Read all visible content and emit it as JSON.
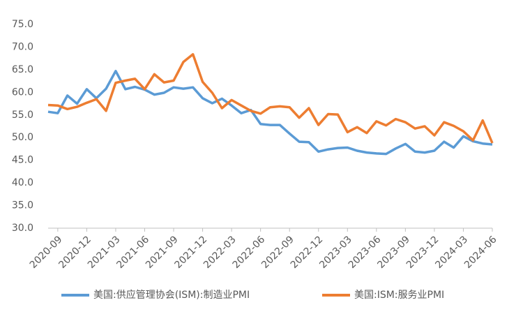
{
  "chart_data": {
    "type": "line",
    "categories": [
      null,
      "2020-09",
      null,
      null,
      "2020-12",
      null,
      null,
      "2021-03",
      null,
      null,
      "2021-06",
      null,
      null,
      "2021-09",
      null,
      null,
      "2021-12",
      null,
      null,
      "2022-03",
      null,
      null,
      "2022-06",
      null,
      null,
      "2022-09",
      null,
      null,
      "2022-12",
      null,
      null,
      "2023-03",
      null,
      null,
      "2023-06",
      null,
      null,
      "2023-09",
      null,
      null,
      "2023-12",
      null,
      null,
      "2024-03",
      null,
      null,
      "2024-06"
    ],
    "series": [
      {
        "name": "美国:供应管理协会(ISM):制造业PMI",
        "color": "#5b9bd5",
        "values": [
          55.7,
          55.4,
          59.3,
          57.5,
          60.7,
          58.7,
          60.8,
          64.7,
          60.7,
          61.2,
          60.6,
          59.5,
          59.9,
          61.1,
          60.8,
          61.1,
          58.7,
          57.6,
          58.6,
          57.1,
          55.4,
          56.1,
          53.0,
          52.8,
          52.8,
          50.9,
          49.1,
          49.0,
          46.9,
          47.4,
          47.7,
          47.8,
          47.1,
          46.7,
          46.5,
          46.4,
          47.6,
          48.6,
          46.9,
          46.7,
          47.1,
          49.1,
          47.8,
          50.3,
          49.2,
          48.7,
          48.5
        ]
      },
      {
        "name": "美国:ISM:服务业PMI",
        "color": "#ed7d31",
        "values": [
          57.2,
          57.1,
          56.3,
          56.8,
          57.7,
          58.5,
          55.9,
          62.1,
          62.6,
          63.0,
          60.7,
          64.0,
          62.2,
          62.6,
          66.7,
          68.4,
          62.3,
          59.9,
          56.5,
          58.3,
          57.1,
          55.9,
          55.3,
          56.7,
          56.9,
          56.7,
          54.4,
          56.5,
          52.8,
          55.2,
          55.1,
          51.2,
          52.3,
          51.0,
          53.6,
          52.7,
          54.1,
          53.4,
          52.0,
          52.5,
          50.5,
          53.4,
          52.6,
          51.4,
          49.4,
          53.8,
          48.8
        ]
      }
    ],
    "ylim": [
      30,
      75
    ],
    "yticks": [
      {
        "value": 30,
        "label": "30.0"
      },
      {
        "value": 35,
        "label": "35.0"
      },
      {
        "value": 40,
        "label": "40.0"
      },
      {
        "value": 45,
        "label": "45.0"
      },
      {
        "value": 50,
        "label": "50.0"
      },
      {
        "value": 55,
        "label": "55.0"
      },
      {
        "value": 60,
        "label": "60.0"
      },
      {
        "value": 65,
        "label": "65.0"
      },
      {
        "value": 70,
        "label": "70.0"
      },
      {
        "value": 75,
        "label": "75.0"
      }
    ],
    "legend": "bottom"
  }
}
